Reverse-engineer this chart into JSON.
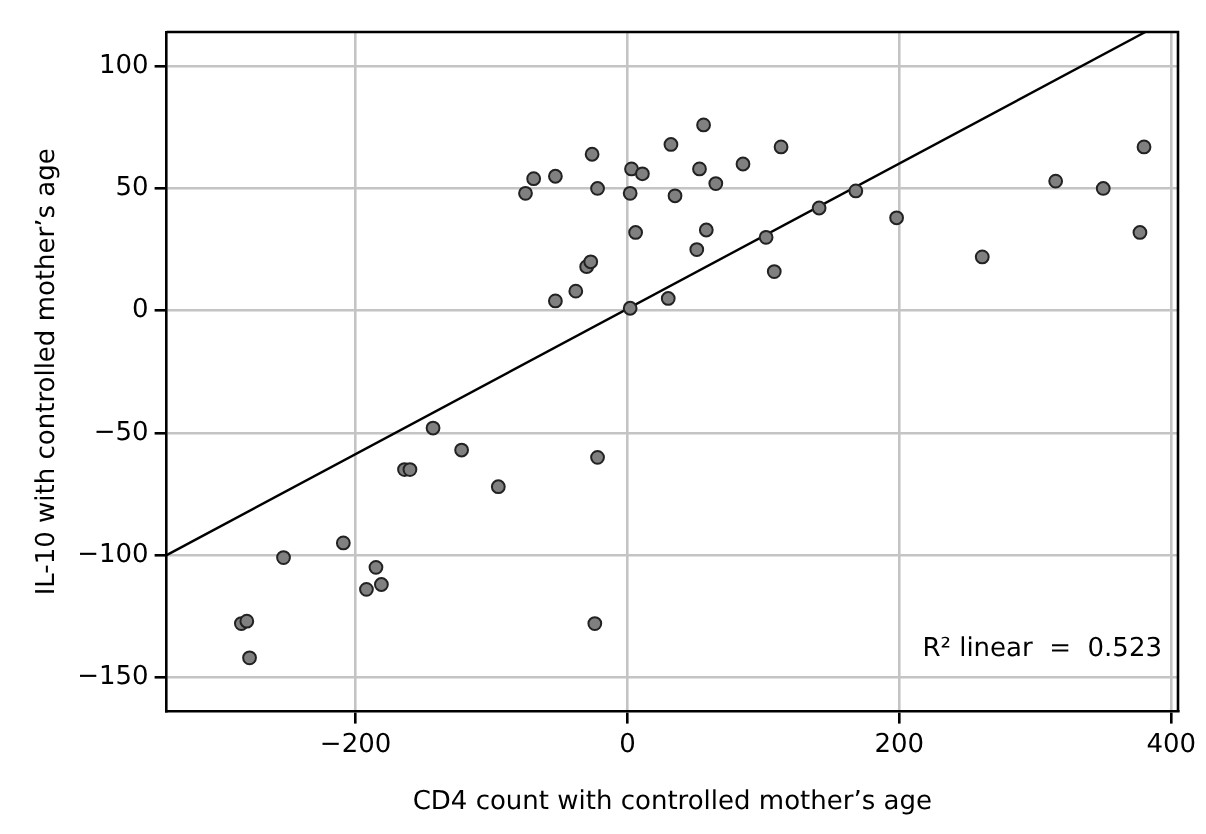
{
  "chart_data": {
    "type": "scatter",
    "xlabel": "CD4 count with controlled mother’s age",
    "ylabel": "IL-10 with controlled mother’s age",
    "xlim": [
      -339,
      405
    ],
    "ylim": [
      -164,
      114
    ],
    "xticks": [
      -200,
      0,
      200,
      400
    ],
    "yticks": [
      -150,
      -100,
      -50,
      0,
      50,
      100
    ],
    "grid": true,
    "legend": false,
    "marker": "circle",
    "annotations": [
      "R² linear  =  0.523"
    ],
    "series": [
      {
        "color": "#808080",
        "x": [
          -75,
          -69,
          -53,
          -26,
          -22,
          3,
          11,
          2,
          6,
          -30,
          -27,
          -53,
          -38,
          2,
          32,
          35,
          30,
          56,
          53,
          65,
          85,
          113,
          58,
          51,
          102,
          108,
          141,
          168,
          198,
          261,
          315,
          350,
          377,
          380,
          -143,
          -122,
          -164,
          -160,
          -95,
          -22,
          -209,
          -253,
          -185,
          -181,
          -192,
          -284,
          -280,
          -278,
          -24
        ],
        "values": [
          48,
          54,
          55,
          64,
          50,
          58,
          56,
          48,
          32,
          18,
          20,
          4,
          8,
          1,
          68,
          47,
          5,
          76,
          58,
          52,
          60,
          67,
          33,
          25,
          30,
          16,
          42,
          49,
          38,
          22,
          53,
          50,
          32,
          67,
          -48,
          -57,
          -65,
          -65,
          -72,
          -60,
          -95,
          -101,
          -105,
          -112,
          -114,
          -128,
          -127,
          -142,
          -128
        ]
      },
      {
        "type": "line",
        "color": "#000000",
        "marker": "none",
        "x": [
          -339,
          381
        ],
        "values": [
          -100,
          114
        ]
      }
    ]
  }
}
